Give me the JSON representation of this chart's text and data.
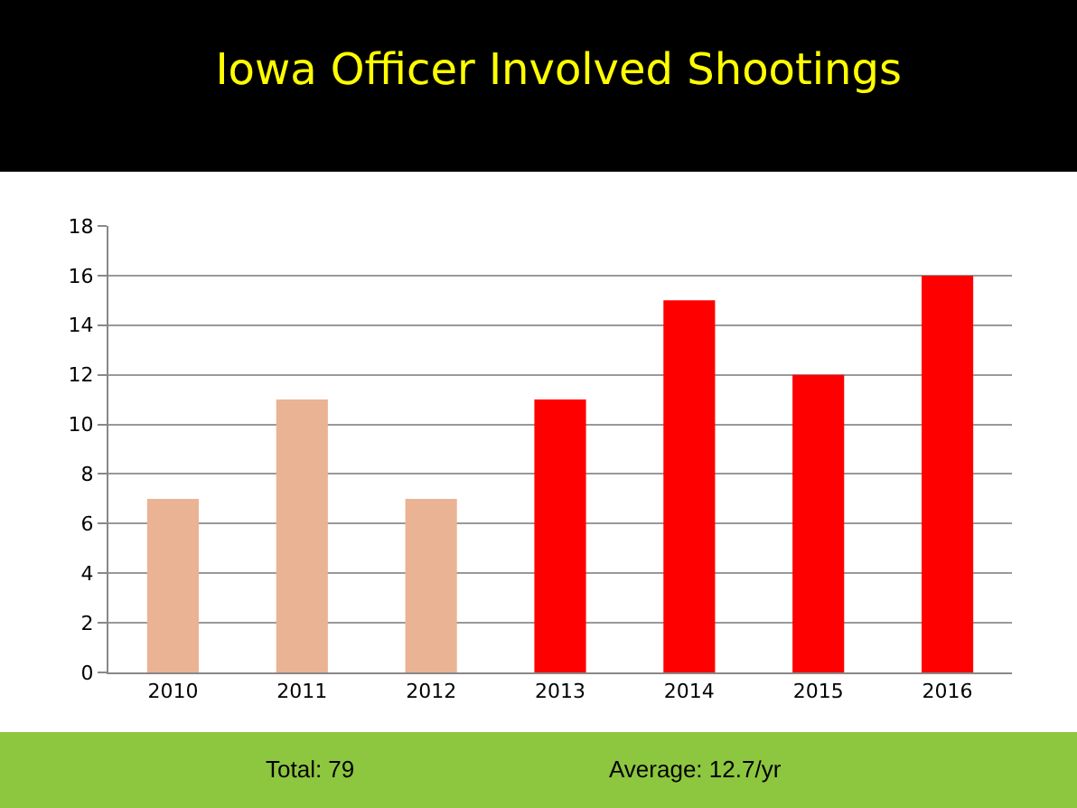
{
  "chart_data": {
    "type": "bar",
    "title": "Iowa Officer Involved Shootings",
    "categories": [
      "2010",
      "2011",
      "2012",
      "2013",
      "2014",
      "2015",
      "2016"
    ],
    "values": [
      7,
      11,
      7,
      11,
      15,
      12,
      16
    ],
    "colors": [
      "#eab393",
      "#eab393",
      "#eab393",
      "#ff0000",
      "#ff0000",
      "#ff0000",
      "#ff0000"
    ],
    "ylim": [
      0,
      18
    ],
    "yticks": [
      0,
      2,
      4,
      6,
      8,
      10,
      12,
      14,
      16,
      18
    ],
    "grid": "y",
    "legend": false,
    "annotations": [
      "Total: 79",
      "Average: 12.7/yr"
    ]
  }
}
